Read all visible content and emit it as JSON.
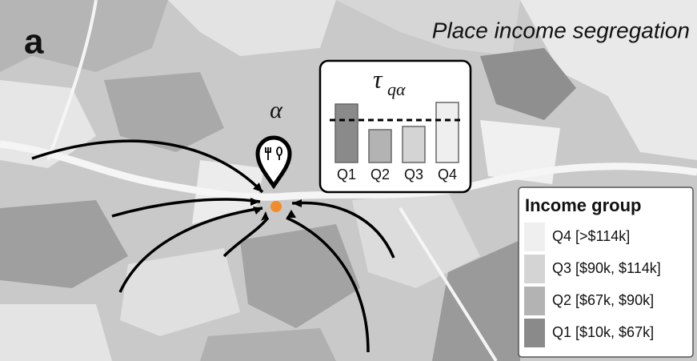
{
  "panel_label": "a",
  "title": "Place income segregation",
  "place_label": "α",
  "inset": {
    "type": "bar",
    "title_symbol": "τ",
    "title_subscript": "qα",
    "categories": [
      "Q1",
      "Q2",
      "Q3",
      "Q4"
    ],
    "values": [
      73,
      41,
      45,
      75
    ],
    "colors": [
      "#8a8a8a",
      "#b3b3b3",
      "#d4d4d4",
      "#efefef"
    ],
    "reference": 53,
    "ylim": [
      0,
      80
    ]
  },
  "legend": {
    "title": "Income group",
    "items": [
      {
        "label": "Q4 [>$114k]",
        "color": "#efefef"
      },
      {
        "label": "Q3 [$90k, $114k]",
        "color": "#d4d4d4"
      },
      {
        "label": "Q2 [$67k, $90k]",
        "color": "#b3b3b3"
      },
      {
        "label": "Q1 [$10k, $67k]",
        "color": "#8a8a8a"
      }
    ]
  }
}
